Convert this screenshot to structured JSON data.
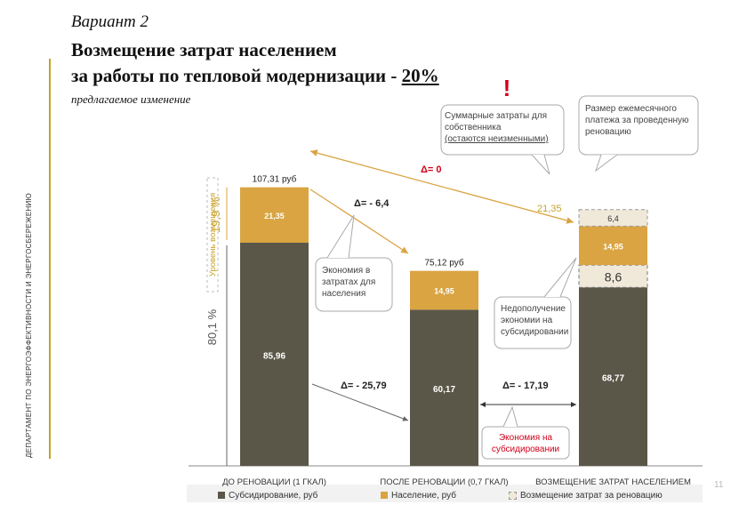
{
  "header": {
    "variant": "Вариант 2",
    "title_line1": "Возмещение затрат населением",
    "title_line2_prefix": "за работы по тепловой модернизации  - ",
    "title_line2_emphasis": "20%",
    "subtitle": "предлагаемое изменение"
  },
  "side_label": "ДЕПАРТАМЕНТ ПО ЭНЕРГОЭФФЕКТИВНОСТИ И ЭНЕРГОСБЕРЕЖЕНИЮ",
  "page_number": "11",
  "colors": {
    "subsidy": "#5b5748",
    "population": "#d9a441",
    "compensation": "#f0e8d8",
    "gold_text": "#c9a227",
    "red": "#d0021b",
    "background": "#ffffff"
  },
  "chart_data": {
    "type": "bar",
    "stacked": true,
    "categories": [
      "ДО РЕНОВАЦИИ (1 ГКАЛ)",
      "ПОСЛЕ РЕНОВАЦИИ (0,7 ГКАЛ)",
      "ВОЗМЕЩЕНИЕ ЗАТРАТ НАСЕЛЕНИЕМ"
    ],
    "series": [
      {
        "name": "Субсидирование, руб",
        "values": [
          85.96,
          60.17,
          68.77
        ],
        "labels": [
          "85,96",
          "60,17",
          "68,77"
        ]
      },
      {
        "name": "Население, руб",
        "values": [
          21.35,
          14.95,
          14.95
        ],
        "labels": [
          "21,35",
          "14,95",
          "14,95"
        ]
      },
      {
        "name": "Возмещение затрат за реновацию",
        "values": [
          null,
          null,
          6.4
        ],
        "labels": [
          "",
          "",
          "6,4"
        ]
      }
    ],
    "extra_segment": {
      "category_index": 2,
      "value": 8.6,
      "label": "8,6"
    },
    "totals": [
      "107,31 руб",
      "75,12 руб",
      ""
    ],
    "ylim": [
      0,
      115
    ],
    "grid": false,
    "legend_position": "bottom",
    "annotations": {
      "pct_top": "19,9 %",
      "pct_bottom": "80,1 %",
      "level_label": "Уровень возмещения",
      "third_side_value": "21,35",
      "delta_zero": "Δ= 0",
      "delta_6_4": "Δ= - 6,4",
      "delta_25_79": "Δ= - 25,79",
      "delta_17_19": "Δ= - 17,19",
      "exclamation": "!"
    },
    "callouts": {
      "savings": [
        "Экономия в",
        "затратах для",
        "населения"
      ],
      "total_costs": [
        "Суммарные затраты для",
        "собственника",
        "(остаются неизменными)"
      ],
      "monthly": [
        "Размер ежемесячного",
        "платежа за проведенную",
        "реновацию"
      ],
      "shortfall": [
        "Недополучение",
        "экономии на",
        "субсидировании"
      ],
      "subsidy_savings": [
        "Экономия на",
        "субсидировании"
      ]
    }
  }
}
